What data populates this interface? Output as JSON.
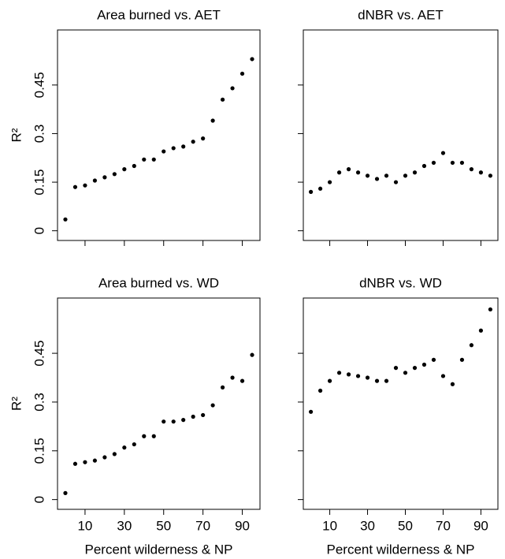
{
  "chart_data": [
    {
      "type": "scatter",
      "title": "Area burned vs. AET",
      "ylabel": "R²",
      "color": "#000000",
      "x": [
        0,
        5,
        10,
        15,
        20,
        25,
        30,
        35,
        40,
        45,
        50,
        55,
        60,
        65,
        70,
        75,
        80,
        85,
        90,
        95
      ],
      "values": [
        0.035,
        0.135,
        0.14,
        0.155,
        0.165,
        0.175,
        0.19,
        0.2,
        0.22,
        0.22,
        0.245,
        0.255,
        0.26,
        0.275,
        0.285,
        0.34,
        0.405,
        0.44,
        0.485,
        0.53
      ],
      "xlim": [
        -4,
        99
      ],
      "ylim": [
        -0.03,
        0.62
      ],
      "xticks": [
        10,
        30,
        50,
        70,
        90
      ],
      "yticks": [
        0,
        0.15,
        0.3,
        0.45
      ]
    },
    {
      "type": "scatter",
      "title": "dNBR vs. AET",
      "color": "#000000",
      "x": [
        0,
        5,
        10,
        15,
        20,
        25,
        30,
        35,
        40,
        45,
        50,
        55,
        60,
        65,
        70,
        75,
        80,
        85,
        90,
        95
      ],
      "values": [
        0.12,
        0.13,
        0.15,
        0.18,
        0.19,
        0.18,
        0.17,
        0.16,
        0.17,
        0.15,
        0.17,
        0.18,
        0.2,
        0.21,
        0.24,
        0.21,
        0.21,
        0.19,
        0.18,
        0.17
      ],
      "xlim": [
        -4,
        99
      ],
      "ylim": [
        -0.03,
        0.62
      ],
      "xticks": [
        10,
        30,
        50,
        70,
        90
      ],
      "yticks": [
        0,
        0.15,
        0.3,
        0.45
      ]
    },
    {
      "type": "scatter",
      "title": "Area burned vs. WD",
      "ylabel": "R²",
      "xlabel": "Percent wilderness & NP",
      "color": "#000000",
      "x": [
        0,
        5,
        10,
        15,
        20,
        25,
        30,
        35,
        40,
        45,
        50,
        55,
        60,
        65,
        70,
        75,
        80,
        85,
        90,
        95
      ],
      "values": [
        0.02,
        0.11,
        0.115,
        0.12,
        0.13,
        0.14,
        0.16,
        0.17,
        0.195,
        0.195,
        0.24,
        0.24,
        0.245,
        0.255,
        0.26,
        0.29,
        0.345,
        0.375,
        0.365,
        0.445
      ],
      "xlim": [
        -4,
        99
      ],
      "ylim": [
        -0.03,
        0.62
      ],
      "xticks": [
        10,
        30,
        50,
        70,
        90
      ],
      "yticks": [
        0,
        0.15,
        0.3,
        0.45
      ]
    },
    {
      "type": "scatter",
      "title": "dNBR vs. WD",
      "xlabel": "Percent wilderness & NP",
      "color": "#000000",
      "x": [
        0,
        5,
        10,
        15,
        20,
        25,
        30,
        35,
        40,
        45,
        50,
        55,
        60,
        65,
        70,
        75,
        80,
        85,
        90,
        95
      ],
      "values": [
        0.27,
        0.335,
        0.365,
        0.39,
        0.385,
        0.38,
        0.375,
        0.365,
        0.365,
        0.405,
        0.39,
        0.405,
        0.415,
        0.43,
        0.38,
        0.355,
        0.43,
        0.475,
        0.52,
        0.585
      ],
      "xlim": [
        -4,
        99
      ],
      "ylim": [
        -0.03,
        0.62
      ],
      "xticks": [
        10,
        30,
        50,
        70,
        90
      ],
      "yticks": [
        0,
        0.15,
        0.3,
        0.45
      ]
    }
  ]
}
